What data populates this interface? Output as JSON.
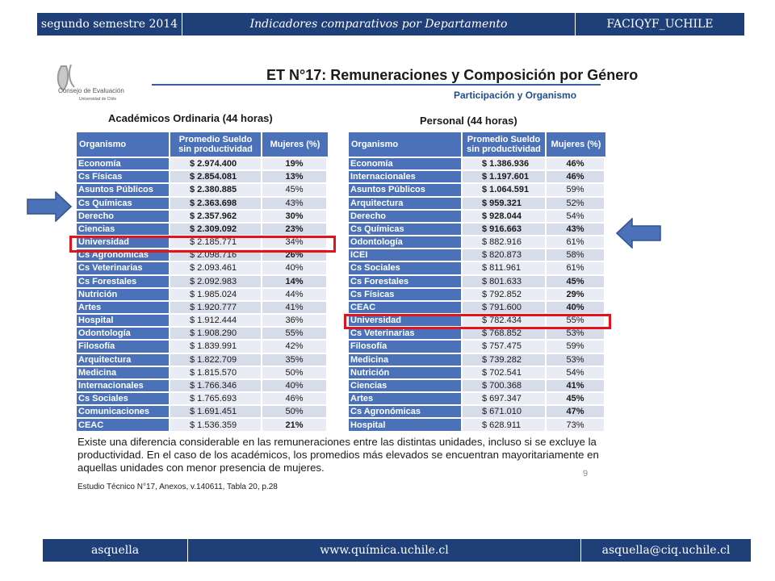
{
  "header": {
    "left": "segundo semestre 2014",
    "center": "Indicadores comparativos por Departamento",
    "right": "FACIQYF_UCHILE"
  },
  "footer": {
    "left": "asquella",
    "center": "www.química.uchile.cl",
    "right": "asquella@ciq.uchile.cl"
  },
  "logo": {
    "line1": "Consejo de Evaluación",
    "line2": "Universidad de Chile"
  },
  "slide": {
    "title": "ET N°17: Remuneraciones y Composición por Género",
    "subtitle": "Participación y Organismo",
    "note": "Existe una diferencia considerable en las remuneraciones entre las distintas unidades, incluso si se excluye la productividad. En el caso de los académicos, los promedios más elevados se encuentran mayoritariamente en aquellas unidades con menor presencia de mujeres.",
    "page_number": "9",
    "source": "Estudio Técnico N°17, Anexos, v.140611, Tabla 20, p.28"
  },
  "table_academicos": {
    "title": "Académicos Ordinaria (44 horas)",
    "headers": {
      "org": "Organismo",
      "sueldo_1": "Promedio Sueldo",
      "sueldo_2": "sin productividad",
      "mujeres": "Mujeres (%)"
    },
    "rows": [
      {
        "org": "Economía",
        "sueldo": "$ 2.974.400",
        "mujeres": "19%",
        "bs": true,
        "bm": true
      },
      {
        "org": "Cs Físicas",
        "sueldo": "$ 2.854.081",
        "mujeres": "13%",
        "bs": true,
        "bm": true
      },
      {
        "org": "Asuntos Públicos",
        "sueldo": "$ 2.380.885",
        "mujeres": "45%",
        "bs": true,
        "bm": false
      },
      {
        "org": "Cs Químicas",
        "sueldo": "$ 2.363.698",
        "mujeres": "43%",
        "bs": true,
        "bm": false
      },
      {
        "org": "Derecho",
        "sueldo": "$ 2.357.962",
        "mujeres": "30%",
        "bs": true,
        "bm": true
      },
      {
        "org": "Ciencias",
        "sueldo": "$ 2.309.092",
        "mujeres": "23%",
        "bs": true,
        "bm": true
      },
      {
        "org": "Universidad",
        "sueldo": "$ 2.185.771",
        "mujeres": "34%",
        "bs": false,
        "bm": false
      },
      {
        "org": "Cs Agronómicas",
        "sueldo": "$ 2.098.716",
        "mujeres": "26%",
        "bs": false,
        "bm": true
      },
      {
        "org": "Cs Veterinarias",
        "sueldo": "$ 2.093.461",
        "mujeres": "40%",
        "bs": false,
        "bm": false
      },
      {
        "org": "Cs Forestales",
        "sueldo": "$ 2.092.983",
        "mujeres": "14%",
        "bs": false,
        "bm": true
      },
      {
        "org": "Nutrición",
        "sueldo": "$ 1.985.024",
        "mujeres": "44%",
        "bs": false,
        "bm": false
      },
      {
        "org": "Artes",
        "sueldo": "$ 1.920.777",
        "mujeres": "41%",
        "bs": false,
        "bm": false
      },
      {
        "org": "Hospital",
        "sueldo": "$ 1.912.444",
        "mujeres": "36%",
        "bs": false,
        "bm": false
      },
      {
        "org": "Odontología",
        "sueldo": "$ 1.908.290",
        "mujeres": "55%",
        "bs": false,
        "bm": false
      },
      {
        "org": "Filosofía",
        "sueldo": "$ 1.839.991",
        "mujeres": "42%",
        "bs": false,
        "bm": false
      },
      {
        "org": "Arquitectura",
        "sueldo": "$ 1.822.709",
        "mujeres": "35%",
        "bs": false,
        "bm": false
      },
      {
        "org": "Medicina",
        "sueldo": "$ 1.815.570",
        "mujeres": "50%",
        "bs": false,
        "bm": false
      },
      {
        "org": "Internacionales",
        "sueldo": "$ 1.766.346",
        "mujeres": "40%",
        "bs": false,
        "bm": false
      },
      {
        "org": "Cs Sociales",
        "sueldo": "$ 1.765.693",
        "mujeres": "46%",
        "bs": false,
        "bm": false
      },
      {
        "org": "Comunicaciones",
        "sueldo": "$ 1.691.451",
        "mujeres": "50%",
        "bs": false,
        "bm": false
      },
      {
        "org": "CEAC",
        "sueldo": "$ 1.536.359",
        "mujeres": "21%",
        "bs": false,
        "bm": true
      }
    ]
  },
  "table_personal": {
    "title": "Personal (44 horas)",
    "headers": {
      "org": "Organismo",
      "sueldo_1": "Promedio Sueldo",
      "sueldo_2": "sin productividad",
      "mujeres": "Mujeres (%)"
    },
    "rows": [
      {
        "org": "Economía",
        "sueldo": "$ 1.386.936",
        "mujeres": "46%",
        "bs": true,
        "bm": true
      },
      {
        "org": "Internacionales",
        "sueldo": "$ 1.197.601",
        "mujeres": "46%",
        "bs": true,
        "bm": true
      },
      {
        "org": "Asuntos Públicos",
        "sueldo": "$ 1.064.591",
        "mujeres": "59%",
        "bs": true,
        "bm": false
      },
      {
        "org": "Arquitectura",
        "sueldo": "$ 959.321",
        "mujeres": "52%",
        "bs": true,
        "bm": false
      },
      {
        "org": "Derecho",
        "sueldo": "$ 928.044",
        "mujeres": "54%",
        "bs": true,
        "bm": false
      },
      {
        "org": "Cs Químicas",
        "sueldo": "$ 916.663",
        "mujeres": "43%",
        "bs": true,
        "bm": true
      },
      {
        "org": "Odontología",
        "sueldo": "$ 882.916",
        "mujeres": "61%",
        "bs": false,
        "bm": false
      },
      {
        "org": "ICEI",
        "sueldo": "$ 820.873",
        "mujeres": "58%",
        "bs": false,
        "bm": false
      },
      {
        "org": "Cs Sociales",
        "sueldo": "$ 811.961",
        "mujeres": "61%",
        "bs": false,
        "bm": false
      },
      {
        "org": "Cs Forestales",
        "sueldo": "$ 801.633",
        "mujeres": "45%",
        "bs": false,
        "bm": true
      },
      {
        "org": "Cs Físicas",
        "sueldo": "$ 792.852",
        "mujeres": "29%",
        "bs": false,
        "bm": true
      },
      {
        "org": "CEAC",
        "sueldo": "$ 791.600",
        "mujeres": "40%",
        "bs": false,
        "bm": true
      },
      {
        "org": "Universidad",
        "sueldo": "$ 782.434",
        "mujeres": "55%",
        "bs": false,
        "bm": false
      },
      {
        "org": "Cs Veterinarias",
        "sueldo": "$ 768.852",
        "mujeres": "53%",
        "bs": false,
        "bm": false
      },
      {
        "org": "Filosofía",
        "sueldo": "$ 757.475",
        "mujeres": "59%",
        "bs": false,
        "bm": false
      },
      {
        "org": "Medicina",
        "sueldo": "$ 739.282",
        "mujeres": "53%",
        "bs": false,
        "bm": false
      },
      {
        "org": "Nutrición",
        "sueldo": "$ 702.541",
        "mujeres": "54%",
        "bs": false,
        "bm": false
      },
      {
        "org": "Ciencias",
        "sueldo": "$ 700.368",
        "mujeres": "41%",
        "bs": false,
        "bm": true
      },
      {
        "org": "Artes",
        "sueldo": "$ 697.347",
        "mujeres": "45%",
        "bs": false,
        "bm": true
      },
      {
        "org": "Cs Agronómicas",
        "sueldo": "$ 671.010",
        "mujeres": "47%",
        "bs": false,
        "bm": true
      },
      {
        "org": "Hospital",
        "sueldo": "$ 628.911",
        "mujeres": "73%",
        "bs": false,
        "bm": false
      }
    ]
  },
  "colors": {
    "bar": "#1f3f79",
    "table_header": "#4b72b8",
    "highlight": "#e2141b",
    "arrow": "#4b72b8"
  }
}
